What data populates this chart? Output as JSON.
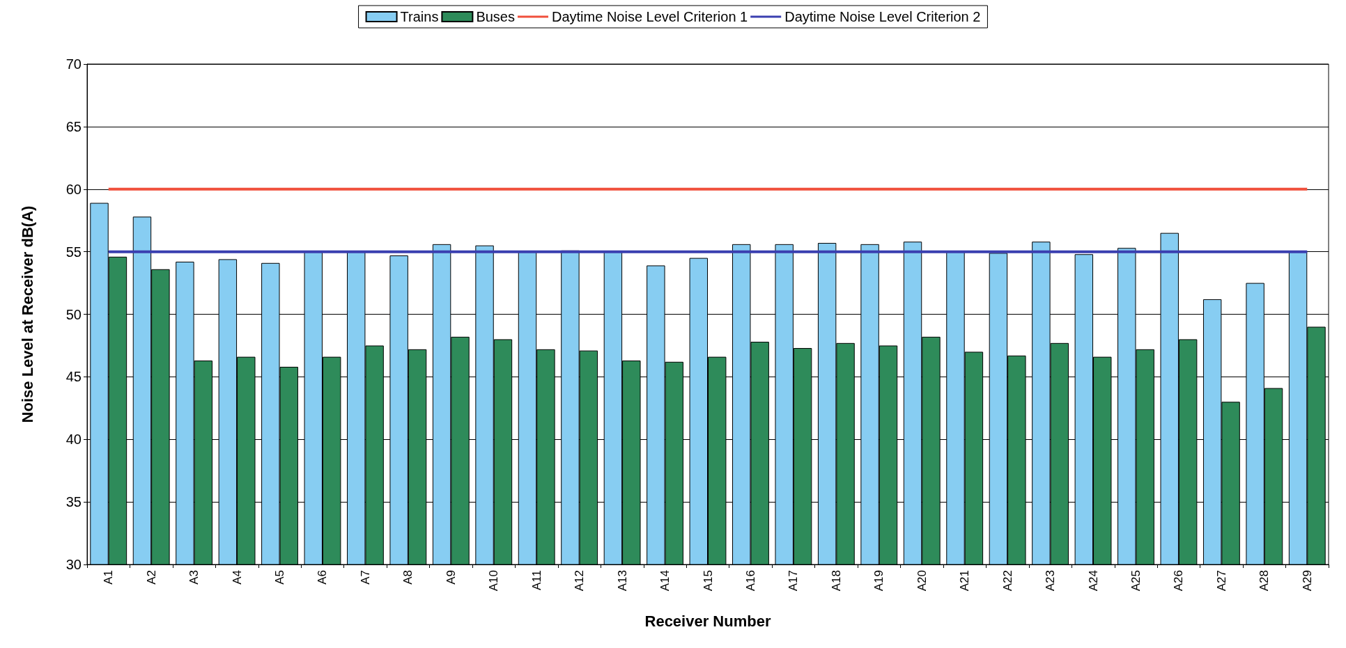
{
  "chart_data": {
    "type": "bar",
    "xlabel": "Receiver Number",
    "ylabel": "Noise Level at Receiver dB(A)",
    "categories": [
      "A1",
      "A2",
      "A3",
      "A4",
      "A5",
      "A6",
      "A7",
      "A8",
      "A9",
      "A10",
      "A11",
      "A12",
      "A13",
      "A14",
      "A15",
      "A16",
      "A17",
      "A18",
      "A19",
      "A20",
      "A21",
      "A22",
      "A23",
      "A24",
      "A25",
      "A26",
      "A27",
      "A28",
      "A29"
    ],
    "series": [
      {
        "name": "Trains",
        "color": "#87cdf2",
        "values": [
          58.9,
          57.8,
          54.2,
          54.4,
          54.1,
          55.0,
          55.0,
          54.7,
          55.6,
          55.5,
          55.0,
          55.1,
          55.0,
          53.9,
          54.5,
          55.6,
          55.6,
          55.7,
          55.6,
          55.8,
          55.0,
          54.9,
          55.8,
          54.8,
          55.3,
          56.5,
          51.2,
          52.5,
          55.0
        ]
      },
      {
        "name": "Buses",
        "color": "#2e8b5a",
        "values": [
          54.6,
          53.6,
          46.3,
          46.6,
          45.8,
          46.6,
          47.5,
          47.2,
          48.2,
          48.0,
          47.2,
          47.1,
          46.3,
          46.2,
          46.6,
          47.8,
          47.3,
          47.7,
          47.5,
          48.2,
          47.0,
          46.7,
          47.7,
          46.6,
          47.2,
          48.0,
          43.0,
          44.1,
          49.0
        ]
      },
      {
        "name": "Daytime Noise Level Criterion 1",
        "type": "line",
        "color": "#f0503c",
        "values": [
          60,
          60,
          60,
          60,
          60,
          60,
          60,
          60,
          60,
          60,
          60,
          60,
          60,
          60,
          60,
          60,
          60,
          60,
          60,
          60,
          60,
          60,
          60,
          60,
          60,
          60,
          60,
          60,
          60
        ]
      },
      {
        "name": "Daytime Noise Level Criterion 2",
        "type": "line",
        "color": "#3a3fb0",
        "values": [
          55,
          55,
          55,
          55,
          55,
          55,
          55,
          55,
          55,
          55,
          55,
          55,
          55,
          55,
          55,
          55,
          55,
          55,
          55,
          55,
          55,
          55,
          55,
          55,
          55,
          55,
          55,
          55,
          55
        ]
      }
    ],
    "ylim": [
      30,
      70
    ],
    "yticks": [
      30,
      35,
      40,
      45,
      50,
      55,
      60,
      65,
      70
    ],
    "grid": "y",
    "legend": "top",
    "marker": "none"
  }
}
